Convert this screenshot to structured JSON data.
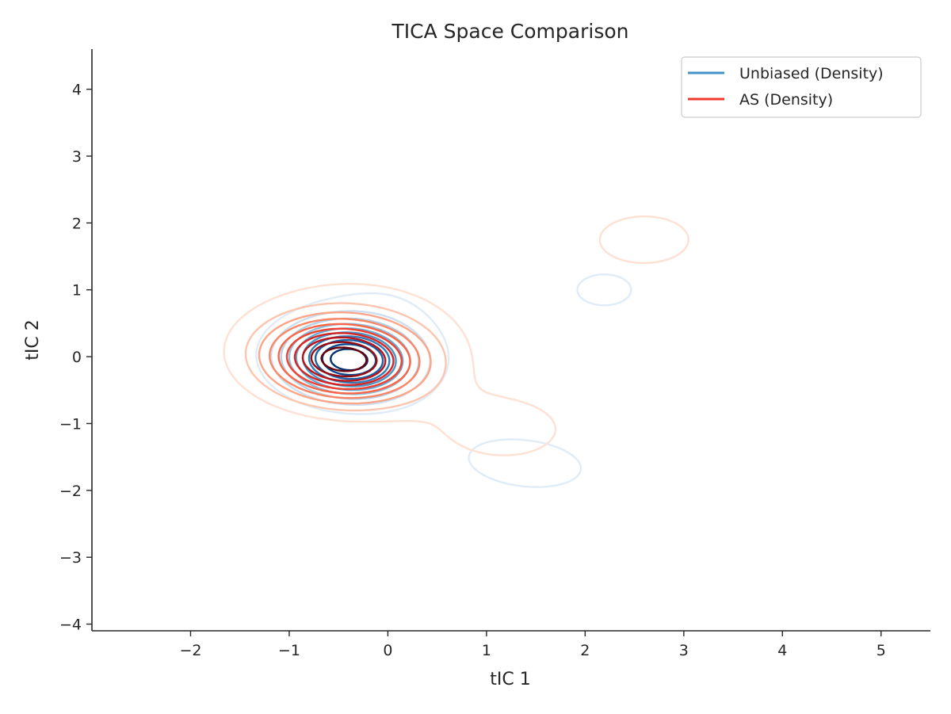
{
  "chart_data": {
    "type": "contour",
    "title": "TICA Space Comparison",
    "xlabel": "tIC 1",
    "ylabel": "tIC 2",
    "xlim": [
      -3.0,
      5.5
    ],
    "ylim": [
      -4.1,
      4.6
    ],
    "xticks": [
      -2,
      -1,
      0,
      1,
      2,
      3,
      4,
      5
    ],
    "yticks": [
      -4,
      -3,
      -2,
      -1,
      0,
      1,
      2,
      3,
      4
    ],
    "xtick_labels": [
      "−2",
      "−1",
      "0",
      "1",
      "2",
      "3",
      "4",
      "5"
    ],
    "ytick_labels": [
      "−4",
      "−3",
      "−2",
      "−1",
      "0",
      "1",
      "2",
      "3",
      "4"
    ],
    "grid": false,
    "legend": {
      "position": "top-right",
      "entries": [
        {
          "label": "Unbiased (Density)",
          "color": "#4292c6"
        },
        {
          "label": "AS (Density)",
          "color": "#ef3b2c"
        }
      ]
    },
    "series": [
      {
        "name": "Unbiased (Density)",
        "colormap": "Blues",
        "levels": 10,
        "components": [
          {
            "mean": [
              -0.4,
              -0.05
            ],
            "sd": [
              0.42,
              0.35
            ],
            "weight": 0.55,
            "rot": -0.2
          },
          {
            "mean": [
              0.0,
              0.7
            ],
            "sd": [
              0.75,
              0.9
            ],
            "weight": 0.22,
            "rot": 0.0
          },
          {
            "mean": [
              1.4,
              -1.6
            ],
            "sd": [
              0.75,
              0.45
            ],
            "weight": 0.16,
            "rot": -0.2
          },
          {
            "mean": [
              2.2,
              1.0
            ],
            "sd": [
              0.35,
              0.3
            ],
            "weight": 0.05,
            "rot": 0.0
          }
        ]
      },
      {
        "name": "AS (Density)",
        "colormap": "Reds",
        "levels": 10,
        "components": [
          {
            "mean": [
              -0.45,
              -0.05
            ],
            "sd": [
              0.5,
              0.38
            ],
            "weight": 0.5,
            "rot": -0.15
          },
          {
            "mean": [
              -0.3,
              0.3
            ],
            "sd": [
              0.95,
              0.8
            ],
            "weight": 0.3,
            "rot": 0.0
          },
          {
            "mean": [
              1.2,
              -1.1
            ],
            "sd": [
              0.6,
              0.45
            ],
            "weight": 0.1,
            "rot": 0.0
          },
          {
            "mean": [
              2.6,
              1.75
            ],
            "sd": [
              0.45,
              0.35
            ],
            "weight": 0.07,
            "rot": 0.0
          }
        ]
      }
    ]
  }
}
